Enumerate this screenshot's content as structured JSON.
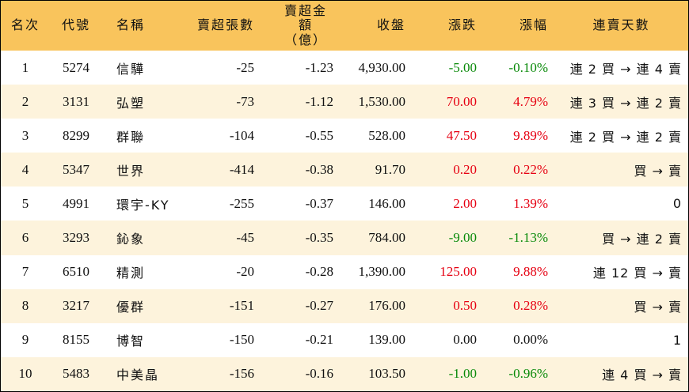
{
  "headers": {
    "rank": "名次",
    "code": "代號",
    "name": "名稱",
    "net_lots": "賣超張數",
    "net_amount_line1": "賣超金額",
    "net_amount_line2": "（億）",
    "close": "收盤",
    "change": "漲跌",
    "change_pct": "漲幅",
    "streak": "連賣天數"
  },
  "colors": {
    "header_bg": "#f9c45c",
    "stripe_bg": "#fdf3dc",
    "up": "#e60012",
    "down": "#0a8a0a"
  },
  "rows": [
    {
      "rank": "1",
      "code": "5274",
      "name": "信驊",
      "net_lots": "-25",
      "net_amount": "-1.23",
      "close": "4,930.00",
      "change": "-5.00",
      "change_pct": "-0.10%",
      "direction": "down",
      "streak": "連 2 買 → 連 4 賣"
    },
    {
      "rank": "2",
      "code": "3131",
      "name": "弘塑",
      "net_lots": "-73",
      "net_amount": "-1.12",
      "close": "1,530.00",
      "change": "70.00",
      "change_pct": "4.79%",
      "direction": "up",
      "streak": "連 3 買 → 連 2 賣"
    },
    {
      "rank": "3",
      "code": "8299",
      "name": "群聯",
      "net_lots": "-104",
      "net_amount": "-0.55",
      "close": "528.00",
      "change": "47.50",
      "change_pct": "9.89%",
      "direction": "up",
      "streak": "連 2 買 → 連 2 賣"
    },
    {
      "rank": "4",
      "code": "5347",
      "name": "世界",
      "net_lots": "-414",
      "net_amount": "-0.38",
      "close": "91.70",
      "change": "0.20",
      "change_pct": "0.22%",
      "direction": "up",
      "streak": "買 → 賣"
    },
    {
      "rank": "5",
      "code": "4991",
      "name": "環宇-KY",
      "net_lots": "-255",
      "net_amount": "-0.37",
      "close": "146.00",
      "change": "2.00",
      "change_pct": "1.39%",
      "direction": "up",
      "streak": "0"
    },
    {
      "rank": "6",
      "code": "3293",
      "name": "鈊象",
      "net_lots": "-45",
      "net_amount": "-0.35",
      "close": "784.00",
      "change": "-9.00",
      "change_pct": "-1.13%",
      "direction": "down",
      "streak": "買 → 連 2 賣"
    },
    {
      "rank": "7",
      "code": "6510",
      "name": "精測",
      "net_lots": "-20",
      "net_amount": "-0.28",
      "close": "1,390.00",
      "change": "125.00",
      "change_pct": "9.88%",
      "direction": "up",
      "streak": "連 12 買 → 賣"
    },
    {
      "rank": "8",
      "code": "3217",
      "name": "優群",
      "net_lots": "-151",
      "net_amount": "-0.27",
      "close": "176.00",
      "change": "0.50",
      "change_pct": "0.28%",
      "direction": "up",
      "streak": "買 → 賣"
    },
    {
      "rank": "9",
      "code": "8155",
      "name": "博智",
      "net_lots": "-150",
      "net_amount": "-0.21",
      "close": "139.00",
      "change": "0.00",
      "change_pct": "0.00%",
      "direction": "flat",
      "streak": "1"
    },
    {
      "rank": "10",
      "code": "5483",
      "name": "中美晶",
      "net_lots": "-156",
      "net_amount": "-0.16",
      "close": "103.50",
      "change": "-1.00",
      "change_pct": "-0.96%",
      "direction": "down",
      "streak": "連 4 買 → 賣"
    }
  ]
}
